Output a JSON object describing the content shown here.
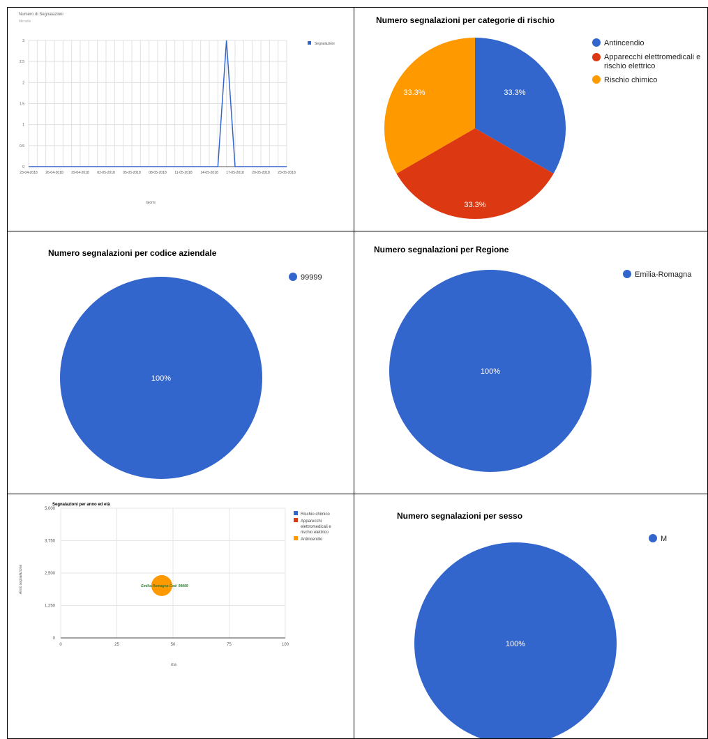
{
  "colors": {
    "blue": "#3366cc",
    "red": "#dc3912",
    "orange": "#ff9900",
    "bubble_label": "#2e7d32"
  },
  "line_chart": {
    "title": "Numero di Segnalazioni",
    "subtitle": "Mensile",
    "xlabel": "Giorni",
    "legend": "Segnalazioni"
  },
  "pie_rischio": {
    "title": "Numero segnalazioni per categorie di rischio",
    "legend": [
      "Antincendio",
      "Apparecchi elettromedicali e",
      "rischio elettrico",
      "Rischio chimico"
    ]
  },
  "pie_aziendale": {
    "title": "Numero segnalazioni per codice aziendale",
    "legend": "99999"
  },
  "pie_regione": {
    "title": "Numero segnalazioni per Regione",
    "legend": "Emilia-Romagna"
  },
  "bubble_chart": {
    "title": "Segnalazioni per anno ed età",
    "xlabel": "Età",
    "ylabel": "Anno segnalazione",
    "legend": [
      "Rischio chimico",
      "Apparecchi",
      "elettromedicali e",
      "rischio elettrico",
      "Antincendio"
    ]
  },
  "pie_sesso": {
    "title": "Numero segnalazioni per sesso",
    "legend": "M"
  },
  "chart_data": [
    {
      "type": "line",
      "title": "Numero di Segnalazioni",
      "subtitle": "Mensile",
      "xlabel": "Giorni",
      "x": [
        "23-04-2018",
        "24-04-2018",
        "25-04-2018",
        "26-04-2018",
        "27-04-2018",
        "28-04-2018",
        "29-04-2018",
        "30-04-2018",
        "01-05-2018",
        "02-05-2018",
        "03-05-2018",
        "04-05-2018",
        "05-05-2018",
        "06-05-2018",
        "07-05-2018",
        "08-05-2018",
        "09-05-2018",
        "10-05-2018",
        "11-05-2018",
        "12-05-2018",
        "13-05-2018",
        "14-05-2018",
        "15-05-2018",
        "16-05-2018",
        "17-05-2018",
        "18-05-2018",
        "19-05-2018",
        "20-05-2018",
        "21-05-2018",
        "22-05-2018",
        "23-05-2018"
      ],
      "x_tick_labels": [
        "23-04-2018",
        "26-04-2018",
        "29-04-2018",
        "02-05-2018",
        "05-05-2018",
        "08-05-2018",
        "11-05-2018",
        "14-05-2018",
        "17-05-2018",
        "20-05-2018",
        "23-05-2018"
      ],
      "series": [
        {
          "name": "Segnalazioni",
          "values": [
            0,
            0,
            0,
            0,
            0,
            0,
            0,
            0,
            0,
            0,
            0,
            0,
            0,
            0,
            0,
            0,
            0,
            0,
            0,
            0,
            0,
            0,
            0,
            3,
            0,
            0,
            0,
            0,
            0,
            0,
            0
          ]
        }
      ],
      "y_ticks": [
        "0",
        "0.5",
        "1",
        "1.5",
        "2",
        "2.5",
        "3"
      ],
      "ylim": [
        0,
        3
      ],
      "grid": true,
      "legend_position": "right"
    },
    {
      "type": "pie",
      "title": "Numero segnalazioni per categorie di rischio",
      "categories": [
        "Antincendio",
        "Apparecchi elettromedicali e rischio elettrico",
        "Rischio chimico"
      ],
      "values": [
        1,
        1,
        1
      ],
      "data_labels": [
        "33.3%",
        "33.3%",
        "33.3%"
      ],
      "legend_position": "right"
    },
    {
      "type": "pie",
      "title": "Numero segnalazioni per codice aziendale",
      "categories": [
        "99999"
      ],
      "values": [
        1
      ],
      "data_labels": [
        "100%"
      ],
      "legend_position": "right"
    },
    {
      "type": "pie",
      "title": "Numero segnalazioni per Regione",
      "categories": [
        "Emilia-Romagna"
      ],
      "values": [
        1
      ],
      "data_labels": [
        "100%"
      ],
      "legend_position": "right"
    },
    {
      "type": "scatter",
      "title": "Segnalazioni per anno ed età",
      "xlabel": "Età",
      "ylabel": "Anno segnalazione",
      "x_ticks": [
        "0",
        "25",
        "50",
        "75",
        "100"
      ],
      "y_ticks": [
        "0",
        "1,250",
        "2,500",
        "3,750",
        "5,000"
      ],
      "xlim": [
        0,
        100
      ],
      "ylim": [
        0,
        5000
      ],
      "series": [
        {
          "name": "Rischio chimico",
          "points": []
        },
        {
          "name": "Apparecchi elettromedicali e rischio elettrico",
          "points": []
        },
        {
          "name": "Antincendio",
          "points": [
            {
              "x": 45,
              "y": 2018,
              "label": "Emilia-Romagna Cod: 99999"
            }
          ]
        }
      ],
      "grid": true,
      "legend_position": "right"
    },
    {
      "type": "pie",
      "title": "Numero segnalazioni per sesso",
      "categories": [
        "M"
      ],
      "values": [
        1
      ],
      "data_labels": [
        "100%"
      ],
      "legend_position": "right"
    }
  ]
}
